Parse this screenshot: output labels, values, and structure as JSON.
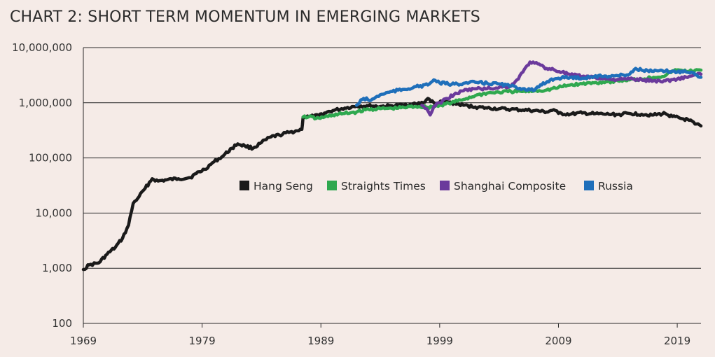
{
  "chart_data": {
    "type": "line",
    "title": "CHART 2: SHORT TERM MOMENTUM IN EMERGING MARKETS",
    "xlabel": "",
    "ylabel": "",
    "yscale": "log",
    "xlim": [
      1969,
      2021
    ],
    "ylim": [
      100,
      10000000
    ],
    "x_ticks": [
      1969,
      1979,
      1989,
      1999,
      2009,
      2019
    ],
    "x_tick_labels": [
      "1969",
      "1979",
      "1989",
      "1999",
      "2009",
      "2019"
    ],
    "y_ticks": [
      100,
      1000,
      10000,
      100000,
      1000000,
      10000000
    ],
    "y_tick_labels": [
      "100",
      "1,000",
      "10,000",
      "100,000",
      "1,000,000",
      "10,000,000"
    ],
    "grid": "horizontal",
    "legend_position": "center-right",
    "series": [
      {
        "name": "Hang Seng",
        "color": "#1a1a1a",
        "points": [
          [
            1969.0,
            950
          ],
          [
            1969.5,
            1150
          ],
          [
            1970.3,
            1250
          ],
          [
            1971.0,
            1800
          ],
          [
            1971.7,
            2400
          ],
          [
            1972.3,
            3500
          ],
          [
            1972.8,
            6000
          ],
          [
            1973.2,
            15000
          ],
          [
            1973.7,
            20000
          ],
          [
            1974.2,
            28000
          ],
          [
            1974.8,
            42000
          ],
          [
            1975.3,
            38000
          ],
          [
            1976.0,
            40000
          ],
          [
            1977.0,
            42000
          ],
          [
            1978.0,
            44000
          ],
          [
            1978.5,
            52000
          ],
          [
            1979.2,
            62000
          ],
          [
            1980.0,
            85000
          ],
          [
            1980.8,
            110000
          ],
          [
            1981.5,
            150000
          ],
          [
            1982.0,
            180000
          ],
          [
            1982.6,
            165000
          ],
          [
            1983.3,
            150000
          ],
          [
            1984.0,
            190000
          ],
          [
            1984.8,
            240000
          ],
          [
            1985.5,
            260000
          ],
          [
            1986.3,
            290000
          ],
          [
            1987.0,
            310000
          ],
          [
            1987.4,
            330000
          ],
          [
            1987.5,
            550000
          ],
          [
            1988.0,
            560000
          ],
          [
            1988.8,
            580000
          ],
          [
            1989.3,
            650000
          ],
          [
            1990.0,
            720000
          ],
          [
            1991.0,
            800000
          ],
          [
            1992.0,
            870000
          ],
          [
            1993.0,
            880000
          ],
          [
            1994.0,
            860000
          ],
          [
            1995.0,
            880000
          ],
          [
            1996.0,
            920000
          ],
          [
            1997.0,
            950000
          ],
          [
            1997.6,
            1000000
          ],
          [
            1998.0,
            1200000
          ],
          [
            1998.6,
            950000
          ],
          [
            1999.3,
            1050000
          ],
          [
            2000.0,
            1000000
          ],
          [
            2001.0,
            900000
          ],
          [
            2002.0,
            840000
          ],
          [
            2003.0,
            800000
          ],
          [
            2004.0,
            780000
          ],
          [
            2005.0,
            760000
          ],
          [
            2006.0,
            740000
          ],
          [
            2007.0,
            720000
          ],
          [
            2008.0,
            680000
          ],
          [
            2008.6,
            750000
          ],
          [
            2009.0,
            640000
          ],
          [
            2010.0,
            620000
          ],
          [
            2011.0,
            650000
          ],
          [
            2012.0,
            630000
          ],
          [
            2013.0,
            620000
          ],
          [
            2014.0,
            610000
          ],
          [
            2015.0,
            640000
          ],
          [
            2016.0,
            620000
          ],
          [
            2017.0,
            600000
          ],
          [
            2018.0,
            640000
          ],
          [
            2018.6,
            560000
          ],
          [
            2019.3,
            520000
          ],
          [
            2020.0,
            480000
          ],
          [
            2020.5,
            410000
          ],
          [
            2021.0,
            380000
          ]
        ]
      },
      {
        "name": "Straights Times",
        "color": "#2fa84f",
        "points": [
          [
            1987.5,
            550000
          ],
          [
            1988.0,
            560000
          ],
          [
            1988.6,
            520000
          ],
          [
            1989.2,
            540000
          ],
          [
            1990.0,
            600000
          ],
          [
            1991.0,
            640000
          ],
          [
            1992.0,
            680000
          ],
          [
            1993.0,
            760000
          ],
          [
            1994.0,
            780000
          ],
          [
            1995.0,
            790000
          ],
          [
            1996.0,
            820000
          ],
          [
            1997.0,
            860000
          ],
          [
            1998.0,
            830000
          ],
          [
            1999.0,
            900000
          ],
          [
            2000.0,
            1000000
          ],
          [
            2001.0,
            1150000
          ],
          [
            2002.0,
            1350000
          ],
          [
            2003.0,
            1500000
          ],
          [
            2004.0,
            1550000
          ],
          [
            2005.0,
            1600000
          ],
          [
            2006.0,
            1600000
          ],
          [
            2007.0,
            1650000
          ],
          [
            2008.0,
            1700000
          ],
          [
            2009.0,
            1900000
          ],
          [
            2010.0,
            2100000
          ],
          [
            2011.0,
            2200000
          ],
          [
            2012.0,
            2300000
          ],
          [
            2013.0,
            2400000
          ],
          [
            2014.0,
            2500000
          ],
          [
            2015.0,
            2600000
          ],
          [
            2016.0,
            2700000
          ],
          [
            2017.0,
            2900000
          ],
          [
            2018.0,
            3100000
          ],
          [
            2018.6,
            3800000
          ],
          [
            2019.3,
            3900000
          ],
          [
            2020.0,
            3700000
          ],
          [
            2021.0,
            3900000
          ]
        ]
      },
      {
        "name": "Shanghai Composite",
        "color": "#6b3a9c",
        "points": [
          [
            1997.5,
            900000
          ],
          [
            1997.9,
            780000
          ],
          [
            1998.2,
            600000
          ],
          [
            1998.5,
            850000
          ],
          [
            1999.0,
            1000000
          ],
          [
            1999.6,
            1200000
          ],
          [
            2000.2,
            1400000
          ],
          [
            2001.0,
            1650000
          ],
          [
            2002.0,
            1800000
          ],
          [
            2003.0,
            1800000
          ],
          [
            2004.0,
            1900000
          ],
          [
            2005.0,
            2000000
          ],
          [
            2005.5,
            2600000
          ],
          [
            2006.0,
            3600000
          ],
          [
            2006.6,
            5500000
          ],
          [
            2007.0,
            5200000
          ],
          [
            2007.5,
            4800000
          ],
          [
            2008.0,
            4200000
          ],
          [
            2008.6,
            4000000
          ],
          [
            2009.3,
            3600000
          ],
          [
            2010.0,
            3200000
          ],
          [
            2011.0,
            3000000
          ],
          [
            2012.0,
            2900000
          ],
          [
            2013.0,
            2700000
          ],
          [
            2014.0,
            2650000
          ],
          [
            2015.0,
            2700000
          ],
          [
            2016.0,
            2600000
          ],
          [
            2017.0,
            2500000
          ],
          [
            2018.0,
            2500000
          ],
          [
            2019.0,
            2700000
          ],
          [
            2020.0,
            3000000
          ],
          [
            2021.0,
            3300000
          ]
        ]
      },
      {
        "name": "Russia",
        "color": "#1f6fba",
        "points": [
          [
            1992.0,
            900000
          ],
          [
            1992.6,
            1200000
          ],
          [
            1993.2,
            1100000
          ],
          [
            1994.0,
            1400000
          ],
          [
            1995.0,
            1600000
          ],
          [
            1996.0,
            1750000
          ],
          [
            1997.0,
            1950000
          ],
          [
            1998.0,
            2100000
          ],
          [
            1998.5,
            2600000
          ],
          [
            1999.0,
            2300000
          ],
          [
            2000.0,
            2150000
          ],
          [
            2001.0,
            2250000
          ],
          [
            2002.0,
            2350000
          ],
          [
            2003.0,
            2250000
          ],
          [
            2004.0,
            2200000
          ],
          [
            2005.0,
            2000000
          ],
          [
            2006.0,
            1800000
          ],
          [
            2007.0,
            1700000
          ],
          [
            2007.6,
            2100000
          ],
          [
            2008.3,
            2600000
          ],
          [
            2009.0,
            2800000
          ],
          [
            2010.0,
            2900000
          ],
          [
            2011.0,
            2800000
          ],
          [
            2012.0,
            3000000
          ],
          [
            2013.0,
            3050000
          ],
          [
            2014.0,
            3100000
          ],
          [
            2015.0,
            3300000
          ],
          [
            2015.5,
            4200000
          ],
          [
            2016.0,
            3900000
          ],
          [
            2017.0,
            3700000
          ],
          [
            2018.0,
            3750000
          ],
          [
            2019.0,
            3600000
          ],
          [
            2019.6,
            3800000
          ],
          [
            2020.3,
            3500000
          ],
          [
            2021.0,
            2900000
          ]
        ]
      }
    ]
  }
}
